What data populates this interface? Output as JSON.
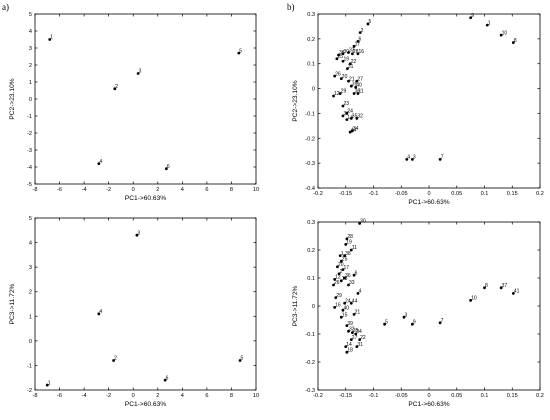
{
  "panel_labels": {
    "a": "a)",
    "b": "b)"
  },
  "chart_data": [
    {
      "type": "scatter",
      "id": "a-top",
      "xlabel": "PC1->60.63%",
      "ylabel": "PC2->23.10%",
      "xlim": [
        -8,
        10
      ],
      "ylim": [
        -5,
        5
      ],
      "xticks": [
        -8,
        -6,
        -4,
        -2,
        0,
        2,
        4,
        6,
        8,
        10
      ],
      "yticks": [
        -5,
        -4,
        -3,
        -2,
        -1,
        0,
        1,
        2,
        3,
        4,
        5
      ],
      "grid": false,
      "points": [
        {
          "label": "1",
          "x": -6.8,
          "y": 3.5
        },
        {
          "label": "2",
          "x": -1.5,
          "y": 0.6
        },
        {
          "label": "3",
          "x": 0.4,
          "y": 1.5
        },
        {
          "label": "4",
          "x": -2.8,
          "y": -3.8
        },
        {
          "label": "5",
          "x": 8.6,
          "y": 2.7
        },
        {
          "label": "6",
          "x": 2.7,
          "y": -4.1
        }
      ]
    },
    {
      "type": "scatter",
      "id": "a-bottom",
      "xlabel": "PC1->60.63%",
      "ylabel": "PC3->11.72%",
      "xlim": [
        -8,
        10
      ],
      "ylim": [
        -2,
        5
      ],
      "xticks": [
        -8,
        -6,
        -4,
        -2,
        0,
        2,
        4,
        6,
        8,
        10
      ],
      "yticks": [
        -2,
        -1,
        0,
        1,
        2,
        3,
        4,
        5
      ],
      "grid": false,
      "points": [
        {
          "label": "1",
          "x": -7.0,
          "y": -1.8
        },
        {
          "label": "2",
          "x": -1.6,
          "y": -0.8
        },
        {
          "label": "3",
          "x": 0.3,
          "y": 4.3
        },
        {
          "label": "4",
          "x": -2.8,
          "y": 1.1
        },
        {
          "label": "5",
          "x": 8.7,
          "y": -0.8
        },
        {
          "label": "6",
          "x": 2.6,
          "y": -1.6
        }
      ]
    },
    {
      "type": "scatter",
      "id": "b-top",
      "xlabel": "PC1->60.63%",
      "ylabel": "PC2->23.10%",
      "xlim": [
        -0.2,
        0.2
      ],
      "ylim": [
        -0.4,
        0.3
      ],
      "xticks": [
        -0.2,
        -0.15,
        -0.1,
        -0.05,
        0,
        0.05,
        0.1,
        0.15,
        0.2
      ],
      "yticks": [
        -0.4,
        -0.3,
        -0.2,
        -0.1,
        0,
        0.1,
        0.2,
        0.3
      ],
      "grid": false,
      "points": [
        {
          "label": "5",
          "x": -0.11,
          "y": 0.26
        },
        {
          "label": "9",
          "x": 0.075,
          "y": 0.285
        },
        {
          "label": "1",
          "x": 0.105,
          "y": 0.255
        },
        {
          "label": "10",
          "x": 0.13,
          "y": 0.215
        },
        {
          "label": "8",
          "x": 0.152,
          "y": 0.185
        },
        {
          "label": "2",
          "x": -0.124,
          "y": 0.225
        },
        {
          "label": "6",
          "x": -0.128,
          "y": 0.19
        },
        {
          "label": "17",
          "x": -0.135,
          "y": 0.17
        },
        {
          "label": "33",
          "x": -0.145,
          "y": 0.145
        },
        {
          "label": "30",
          "x": -0.155,
          "y": 0.14
        },
        {
          "label": "38",
          "x": -0.163,
          "y": 0.135
        },
        {
          "label": "25",
          "x": -0.166,
          "y": 0.12
        },
        {
          "label": "19",
          "x": -0.155,
          "y": 0.11
        },
        {
          "label": "22",
          "x": -0.142,
          "y": 0.1
        },
        {
          "label": "16",
          "x": -0.128,
          "y": 0.14
        },
        {
          "label": "28",
          "x": -0.138,
          "y": 0.14
        },
        {
          "label": "31",
          "x": -0.147,
          "y": 0.08
        },
        {
          "label": "26",
          "x": -0.17,
          "y": 0.05
        },
        {
          "label": "20",
          "x": -0.158,
          "y": 0.04
        },
        {
          "label": "21",
          "x": -0.145,
          "y": 0.03
        },
        {
          "label": "27",
          "x": -0.13,
          "y": 0.03
        },
        {
          "label": "39",
          "x": -0.14,
          "y": 0.01
        },
        {
          "label": "40",
          "x": -0.132,
          "y": 0.005
        },
        {
          "label": "11",
          "x": -0.128,
          "y": -0.02
        },
        {
          "label": "36",
          "x": -0.135,
          "y": -0.02
        },
        {
          "label": "29",
          "x": -0.16,
          "y": -0.02
        },
        {
          "label": "12",
          "x": -0.172,
          "y": -0.03
        },
        {
          "label": "23",
          "x": -0.155,
          "y": -0.07
        },
        {
          "label": "24",
          "x": -0.148,
          "y": -0.1
        },
        {
          "label": "37",
          "x": -0.155,
          "y": -0.11
        },
        {
          "label": "35",
          "x": -0.14,
          "y": -0.12
        },
        {
          "label": "32",
          "x": -0.13,
          "y": -0.12
        },
        {
          "label": "14",
          "x": -0.148,
          "y": -0.125
        },
        {
          "label": "34",
          "x": -0.138,
          "y": -0.17
        },
        {
          "label": "44",
          "x": -0.142,
          "y": -0.175
        },
        {
          "label": "4",
          "x": -0.04,
          "y": -0.285
        },
        {
          "label": "3",
          "x": -0.03,
          "y": -0.285
        },
        {
          "label": "7",
          "x": 0.02,
          "y": -0.285
        }
      ]
    },
    {
      "type": "scatter",
      "id": "b-bottom",
      "xlabel": "PC1->60.63%",
      "ylabel": "PC3->11.72%",
      "xlim": [
        -0.2,
        0.2
      ],
      "ylim": [
        -0.3,
        0.3
      ],
      "xticks": [
        -0.2,
        -0.15,
        -0.1,
        -0.05,
        0,
        0.05,
        0.1,
        0.15,
        0.2
      ],
      "yticks": [
        -0.3,
        -0.2,
        -0.1,
        0,
        0.1,
        0.2,
        0.3
      ],
      "grid": false,
      "points": [
        {
          "label": "30",
          "x": -0.125,
          "y": 0.295
        },
        {
          "label": "28",
          "x": -0.148,
          "y": 0.24
        },
        {
          "label": "19",
          "x": -0.15,
          "y": 0.22
        },
        {
          "label": "11",
          "x": -0.14,
          "y": 0.2
        },
        {
          "label": "1",
          "x": -0.16,
          "y": 0.18
        },
        {
          "label": "38",
          "x": -0.152,
          "y": 0.18
        },
        {
          "label": "25",
          "x": -0.158,
          "y": 0.16
        },
        {
          "label": "20",
          "x": -0.165,
          "y": 0.14
        },
        {
          "label": "17",
          "x": -0.155,
          "y": 0.13
        },
        {
          "label": "2",
          "x": -0.162,
          "y": 0.115
        },
        {
          "label": "36",
          "x": -0.152,
          "y": 0.1
        },
        {
          "label": "12",
          "x": -0.17,
          "y": 0.095
        },
        {
          "label": "13",
          "x": -0.158,
          "y": 0.09
        },
        {
          "label": "6",
          "x": -0.135,
          "y": 0.11
        },
        {
          "label": "26",
          "x": -0.172,
          "y": 0.075
        },
        {
          "label": "33",
          "x": -0.145,
          "y": 0.075
        },
        {
          "label": "4",
          "x": -0.128,
          "y": 0.045
        },
        {
          "label": "29",
          "x": -0.168,
          "y": 0.03
        },
        {
          "label": "24",
          "x": -0.152,
          "y": 0.01
        },
        {
          "label": "44",
          "x": -0.14,
          "y": 0.01
        },
        {
          "label": "40",
          "x": -0.155,
          "y": -0.015
        },
        {
          "label": "16",
          "x": -0.17,
          "y": -0.005
        },
        {
          "label": "15",
          "x": -0.158,
          "y": -0.04
        },
        {
          "label": "21",
          "x": -0.135,
          "y": -0.03
        },
        {
          "label": "39",
          "x": -0.148,
          "y": -0.07
        },
        {
          "label": "32",
          "x": -0.145,
          "y": -0.09
        },
        {
          "label": "35",
          "x": -0.138,
          "y": -0.095
        },
        {
          "label": "34",
          "x": -0.132,
          "y": -0.1
        },
        {
          "label": "27",
          "x": -0.14,
          "y": -0.12
        },
        {
          "label": "22",
          "x": -0.125,
          "y": -0.12
        },
        {
          "label": "31",
          "x": -0.13,
          "y": -0.145
        },
        {
          "label": "14",
          "x": -0.15,
          "y": -0.145
        },
        {
          "label": "18",
          "x": -0.148,
          "y": -0.165
        },
        {
          "label": "3",
          "x": -0.045,
          "y": -0.04
        },
        {
          "label": "9",
          "x": -0.03,
          "y": -0.065
        },
        {
          "label": "10",
          "x": 0.075,
          "y": 0.02
        },
        {
          "label": "7",
          "x": 0.02,
          "y": -0.06
        },
        {
          "label": "8",
          "x": 0.1,
          "y": 0.065
        },
        {
          "label": "5",
          "x": -0.08,
          "y": -0.065
        },
        {
          "label": "37",
          "x": 0.13,
          "y": 0.065
        },
        {
          "label": "41",
          "x": 0.152,
          "y": 0.045
        }
      ]
    }
  ]
}
